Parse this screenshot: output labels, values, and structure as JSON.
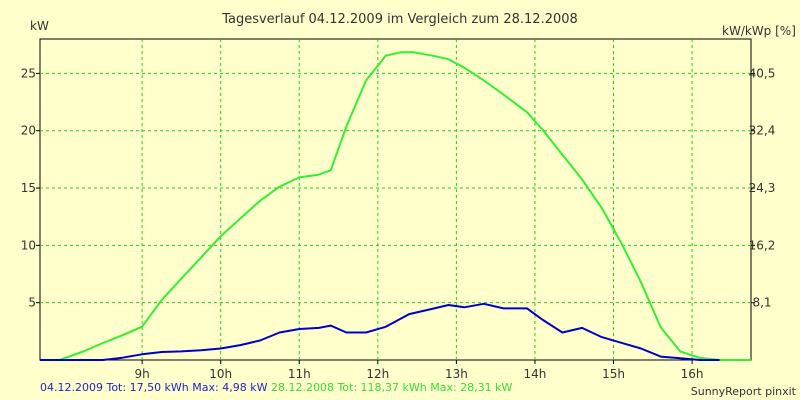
{
  "chart_data": {
    "type": "line",
    "title": "Tagesverlauf 04.12.2009 im Vergleich zum 28.12.2008",
    "ylabel": "kW",
    "ylabel_right": "kW/kWp [%]",
    "xlim": [
      7.7,
      16.75
    ],
    "ylim": [
      0,
      28
    ],
    "x_ticks": [
      {
        "x": 9,
        "label": "9h"
      },
      {
        "x": 10,
        "label": "10h"
      },
      {
        "x": 11,
        "label": "11h"
      },
      {
        "x": 12,
        "label": "12h"
      },
      {
        "x": 13,
        "label": "13h"
      },
      {
        "x": 14,
        "label": "14h"
      },
      {
        "x": 15,
        "label": "15h"
      },
      {
        "x": 16,
        "label": "16h"
      }
    ],
    "y_ticks": [
      5,
      10,
      15,
      20,
      25
    ],
    "y_right_ticks": [
      {
        "y": 5.0,
        "label": "8,1"
      },
      {
        "y": 10.0,
        "label": "16,2"
      },
      {
        "y": 15.0,
        "label": "24,3"
      },
      {
        "y": 20.0,
        "label": "32,4"
      },
      {
        "y": 25.0,
        "label": "40,5"
      }
    ],
    "grid": true,
    "series": [
      {
        "name": "04.12.2009",
        "color": "#0000cc",
        "x": [
          7.7,
          8.5,
          8.75,
          9.0,
          9.25,
          9.5,
          9.75,
          10.0,
          10.25,
          10.5,
          10.75,
          11.0,
          11.25,
          11.4,
          11.6,
          11.85,
          12.1,
          12.4,
          12.65,
          12.9,
          13.1,
          13.35,
          13.6,
          13.9,
          14.1,
          14.35,
          14.6,
          14.85,
          15.1,
          15.35,
          15.6,
          15.85,
          16.1,
          16.35
        ],
        "y": [
          0,
          0,
          0.2,
          0.5,
          0.7,
          0.75,
          0.85,
          1.0,
          1.3,
          1.7,
          2.4,
          2.7,
          2.8,
          3.0,
          2.4,
          2.4,
          2.9,
          4.0,
          4.4,
          4.8,
          4.6,
          4.9,
          4.5,
          4.5,
          3.5,
          2.4,
          2.8,
          2.0,
          1.5,
          1.0,
          0.3,
          0.15,
          0,
          0
        ]
      },
      {
        "name": "28.12.2008",
        "color": "#33ee33",
        "x": [
          7.7,
          7.95,
          8.25,
          8.5,
          8.75,
          9.0,
          9.25,
          9.5,
          9.75,
          10.0,
          10.25,
          10.5,
          10.75,
          11.0,
          11.25,
          11.4,
          11.6,
          11.85,
          12.1,
          12.3,
          12.45,
          12.7,
          12.9,
          13.1,
          13.35,
          13.6,
          13.9,
          14.1,
          14.35,
          14.6,
          14.85,
          15.1,
          15.35,
          15.6,
          15.85,
          16.1,
          16.35,
          16.6,
          16.75
        ],
        "y": [
          0,
          0,
          1.2,
          2.4,
          3.5,
          4.7,
          8.5,
          11.5,
          14.5,
          17.5,
          20.0,
          22.5,
          24.5,
          25.8,
          26.2,
          26.8,
          33.0,
          39.5,
          43.0,
          43.5,
          43.5,
          43.0,
          42.5,
          41.3,
          39.5,
          37.5,
          35.0,
          32.5,
          29.0,
          25.5,
          21.5,
          16.5,
          11.0,
          4.6,
          1.2,
          0.3,
          0,
          0,
          0
        ],
        "y_axis": "right"
      }
    ]
  },
  "footer": {
    "series1_summary": "04.12.2009 Tot: 17,50 kWh Max: 4,98 kW",
    "series2_summary": "28.12.2008 Tot: 118,37 kWh Max: 28,31 kW",
    "credit": "SunnyReport pinxit"
  }
}
